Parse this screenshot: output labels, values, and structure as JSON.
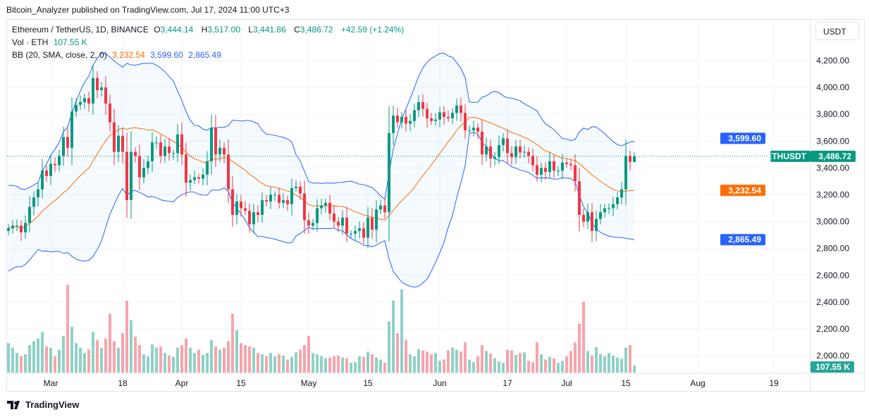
{
  "caption": "Bitcoin_Analyzer published on TradingView.com, Jul 17, 2024 11:00 UTC+3",
  "legend": {
    "symbol": "Ethereum / TetherUS, 1D, BINANCE",
    "o_label": "O",
    "open": "3,444.14",
    "h_label": "H",
    "high": "3,517.00",
    "l_label": "L",
    "low": "3,441.86",
    "c_label": "C",
    "close": "3,486.72",
    "change": "+42.59 (+1.24%)",
    "vol_label": "Vol · ETH",
    "vol_value": "107.55 K",
    "bb_label": "BB (20, SMA, close, 2, 0)",
    "bb_basis": "3,232.54",
    "bb_upper": "3,599.60",
    "bb_lower": "2,865.49"
  },
  "currency_button": "USDT",
  "symbol_tag": "ETHUSDT",
  "volume_tag": "107.55 K",
  "brand": "TradingView",
  "colors": {
    "up": "#089981",
    "down": "#f23645",
    "upper": "#2962ff",
    "basis": "#ff6d00"
  },
  "chart_data": {
    "type": "candlestick",
    "start_date": "2024-02-20",
    "price_ticks": [
      "4,200.00",
      "4,000.00",
      "3,800.00",
      "3,600.00",
      "3,400.00",
      "3,200.00",
      "3,000.00",
      "2,800.00",
      "2,600.00",
      "2,400.00",
      "2,200.00",
      "2,000.00"
    ],
    "price_tick_values": [
      4200,
      4000,
      3800,
      3600,
      3400,
      3200,
      3000,
      2800,
      2600,
      2400,
      2200,
      2000
    ],
    "time_labels": [
      {
        "label": "Mar",
        "date": "2024-03-01"
      },
      {
        "label": "18",
        "date": "2024-03-18"
      },
      {
        "label": "Apr",
        "date": "2024-04-01"
      },
      {
        "label": "15",
        "date": "2024-04-15"
      },
      {
        "label": "May",
        "date": "2024-05-01"
      },
      {
        "label": "15",
        "date": "2024-05-15"
      },
      {
        "label": "Jun",
        "date": "2024-06-01"
      },
      {
        "label": "17",
        "date": "2024-06-17"
      },
      {
        "label": "Jul",
        "date": "2024-07-01"
      },
      {
        "label": "15",
        "date": "2024-07-15"
      },
      {
        "label": "Aug",
        "date": "2024-08-01"
      },
      {
        "label": "19",
        "date": "2024-08-19"
      }
    ],
    "last_ohlc": [
      3444.14,
      3517.0,
      3441.86,
      3486.72
    ],
    "bb_last": {
      "basis": 3232.54,
      "upper": 3599.6,
      "lower": 2865.49
    },
    "closes": [
      2950,
      2970,
      2970,
      2920,
      2990,
      3110,
      3180,
      3240,
      3380,
      3340,
      3430,
      3420,
      3490,
      3630,
      3550,
      3820,
      3870,
      3890,
      3920,
      3880,
      4070,
      3980,
      4000,
      3880,
      3740,
      3520,
      3640,
      3520,
      3160,
      3520,
      3490,
      3330,
      3400,
      3450,
      3590,
      3590,
      3490,
      3560,
      3510,
      3510,
      3650,
      3500,
      3290,
      3310,
      3330,
      3320,
      3350,
      3450,
      3700,
      3500,
      3550,
      3500,
      3240,
      3050,
      3150,
      3100,
      3080,
      2980,
      3070,
      3050,
      3160,
      3150,
      3200,
      3200,
      3140,
      3160,
      3130,
      3250,
      3260,
      3210,
      3010,
      2970,
      2990,
      3100,
      3120,
      3140,
      3060,
      3000,
      2970,
      3030,
      2910,
      2910,
      2930,
      2950,
      2880,
      3030,
      2940,
      3090,
      3120,
      3070,
      3660,
      3790,
      3740,
      3780,
      3730,
      3750,
      3830,
      3890,
      3840,
      3770,
      3750,
      3760,
      3815,
      3780,
      3770,
      3810,
      3865,
      3810,
      3680,
      3680,
      3700,
      3670,
      3500,
      3560,
      3470,
      3480,
      3570,
      3620,
      3510,
      3480,
      3560,
      3515,
      3520,
      3490,
      3420,
      3350,
      3400,
      3370,
      3450,
      3380,
      3380,
      3440,
      3430,
      3420,
      3300,
      3050,
      3000,
      3070,
      2930,
      3020,
      3070,
      3100,
      3100,
      3130,
      3180,
      3240,
      3490,
      3445,
      3486.72
    ],
    "volumes_k": [
      450,
      380,
      300,
      250,
      280,
      420,
      480,
      520,
      620,
      400,
      380,
      250,
      350,
      560,
      1340,
      700,
      450,
      380,
      300,
      350,
      620,
      500,
      380,
      520,
      900,
      480,
      380,
      600,
      1100,
      800,
      550,
      420,
      280,
      250,
      430,
      380,
      400,
      300,
      260,
      240,
      380,
      420,
      520,
      380,
      300,
      350,
      270,
      300,
      500,
      400,
      350,
      380,
      480,
      900,
      650,
      450,
      420,
      400,
      380,
      300,
      280,
      250,
      300,
      250,
      280,
      260,
      200,
      240,
      310,
      350,
      420,
      560,
      300,
      280,
      250,
      220,
      230,
      250,
      260,
      230,
      220,
      150,
      160,
      250,
      240,
      320,
      280,
      230,
      200,
      150,
      780,
      1100,
      600,
      1270,
      500,
      280,
      250,
      360,
      340,
      320,
      280,
      300,
      180,
      200,
      340,
      380,
      350,
      320,
      460,
      200,
      160,
      250,
      420,
      330,
      290,
      220,
      170,
      150,
      350,
      340,
      270,
      300,
      310,
      180,
      160,
      460,
      280,
      200,
      240,
      220,
      150,
      180,
      250,
      330,
      460,
      750,
      1080,
      330,
      260,
      390,
      280,
      250,
      300,
      260,
      230,
      210,
      380,
      420,
      107.55
    ]
  }
}
